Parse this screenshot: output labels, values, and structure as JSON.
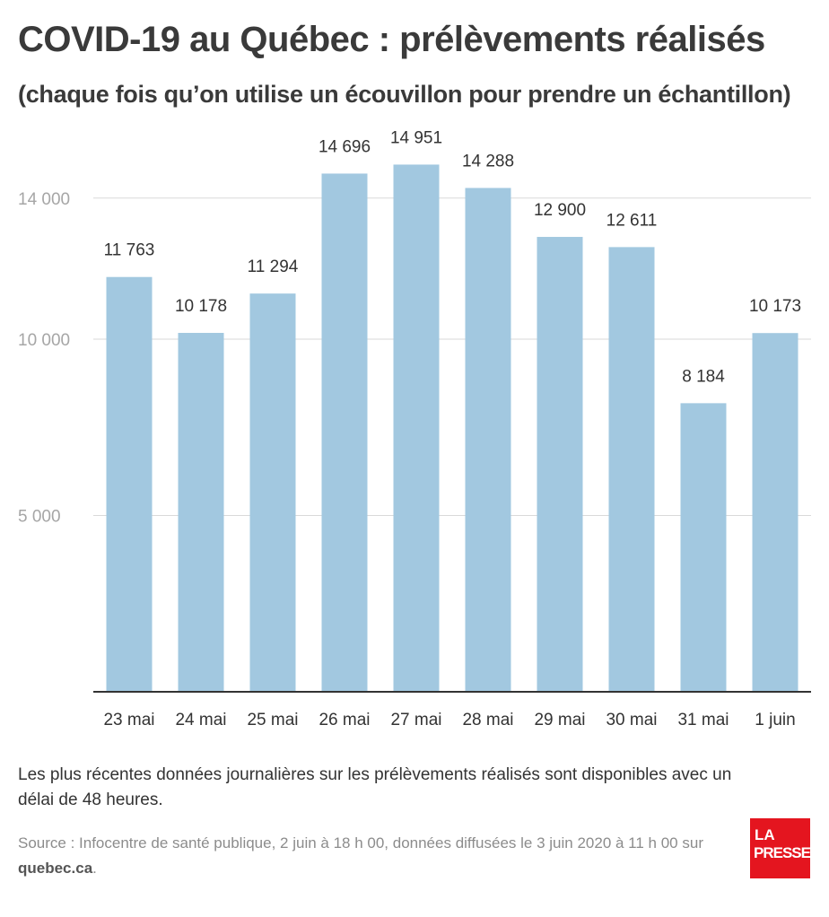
{
  "header": {
    "title": "COVID-19 au Québec : prélèvements réalisés",
    "subtitle": "(chaque fois qu’on utilise un écouvillon pour prendre un échantillon)"
  },
  "chart_data": {
    "type": "bar",
    "title": "COVID-19 au Québec : prélèvements réalisés",
    "subtitle": "(chaque fois qu’on utilise un écouvillon pour prendre un échantillon)",
    "categories": [
      "23 mai",
      "24 mai",
      "25 mai",
      "26 mai",
      "27 mai",
      "28 mai",
      "29 mai",
      "30 mai",
      "31 mai",
      "1 juin"
    ],
    "values": [
      11763,
      10178,
      11294,
      14696,
      14951,
      14288,
      12900,
      12611,
      8184,
      10173
    ],
    "value_labels": [
      "11 763",
      "10 178",
      "11 294",
      "14 696",
      "14 951",
      "14 288",
      "12 900",
      "12 611",
      "8 184",
      "10 173"
    ],
    "yticks": [
      5000,
      10000,
      14000
    ],
    "ytick_labels": [
      "5 000",
      "10 000",
      "14 000"
    ],
    "ylim": [
      0,
      15000
    ],
    "xlabel": "",
    "ylabel": "",
    "grid": true,
    "bar_color": "#a2c8e0",
    "grid_color": "#d9d9d9",
    "axis_color": "#333333"
  },
  "footer": {
    "note": "Les plus récentes données journalières sur les prélèvements réalisés sont disponibles avec un délai de 48 heures.",
    "source_text": "Source : Infocentre de santé publique, 2 juin à 18 h 00, données diffusées le 3 juin 2020 à 11 h 00 sur",
    "source_site": "quebec.ca",
    "source_end": "."
  },
  "logo": {
    "line1": "LA",
    "line2": "PRESSE",
    "color": "#e4151f"
  }
}
